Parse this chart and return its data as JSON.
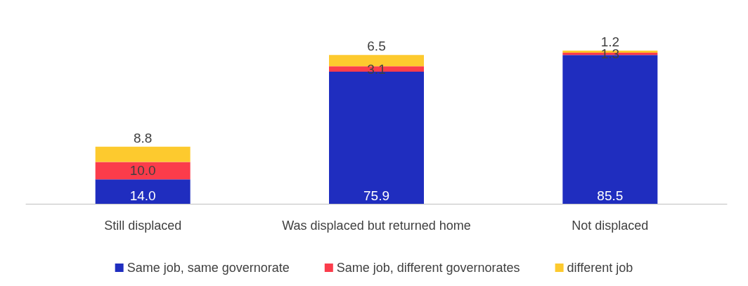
{
  "chart_data": {
    "type": "bar",
    "stacked": true,
    "legend": "bottom",
    "categories": [
      "Still displaced",
      "Was displaced but returned home",
      "Not displaced"
    ],
    "series": [
      {
        "name": "Same job, same governorate",
        "color": "#1f2dbf",
        "values": [
          14.0,
          75.9,
          85.5
        ],
        "value_labels": [
          "14.0",
          "75.9",
          "85.5"
        ]
      },
      {
        "name": "Same job, different governorates",
        "color": "#fb3c4b",
        "values": [
          10.0,
          3.1,
          1.3
        ],
        "value_labels": [
          "10.0",
          "3.1",
          "1.3"
        ]
      },
      {
        "name": "different job",
        "color": "#fdca2e",
        "values": [
          8.8,
          6.5,
          1.2
        ],
        "value_labels": [
          "8.8",
          "6.5",
          "1.2"
        ]
      }
    ]
  }
}
